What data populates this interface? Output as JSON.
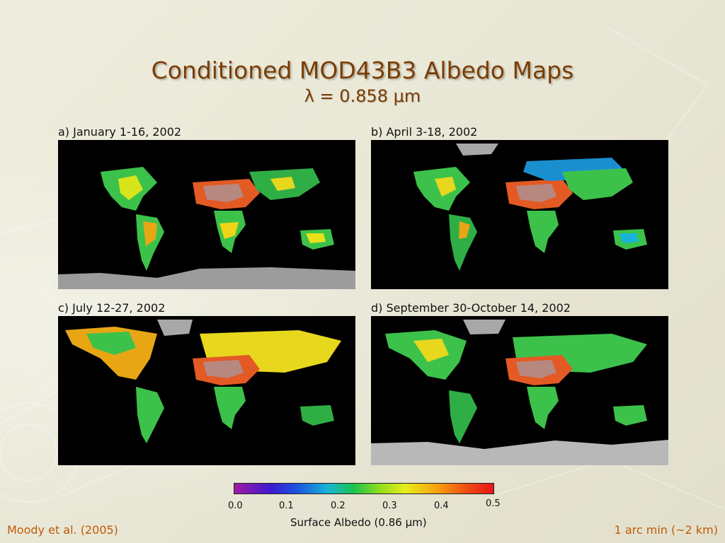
{
  "slide": {
    "title": "Conditioned MOD43B3 Albedo Maps",
    "subtitle": "λ = 0.858 μm"
  },
  "panels": [
    {
      "label": "a) January 1-16, 2002"
    },
    {
      "label": "b) April 3-18, 2002"
    },
    {
      "label": "c) July 12-27, 2002"
    },
    {
      "label": "d) September 30-October 14, 2002"
    }
  ],
  "colorbar": {
    "ticks": [
      "0.0",
      "0.1",
      "0.2",
      "0.3",
      "0.4",
      "0.5"
    ],
    "title": "Surface Albedo (0.86 μm)",
    "colors": [
      "#a21aa2",
      "#3d1ad0",
      "#1a52e0",
      "#18b4d8",
      "#1ac24b",
      "#8fdc1e",
      "#e8ec1a",
      "#f7a312",
      "#ee4a12",
      "#e8151a"
    ]
  },
  "footer": {
    "left": "Moody et al. (2005)",
    "right": "1 arc min (~2 km)"
  }
}
